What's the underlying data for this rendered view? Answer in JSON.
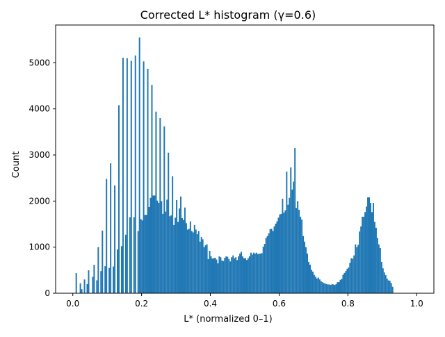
{
  "chart_data": {
    "type": "bar",
    "title": "Corrected L* histogram (γ=0.6)",
    "xlabel": "L* (normalized 0–1)",
    "ylabel": "Count",
    "xlim": [
      -0.05,
      1.05
    ],
    "ylim": [
      0,
      5820
    ],
    "grid": false,
    "legend": "none",
    "bar_color": "#1f77b4",
    "bin_start": 0.0,
    "bin_width": 0.004,
    "x_ticks": [
      "0.0",
      "0.2",
      "0.4",
      "0.6",
      "0.8",
      "1.0"
    ],
    "x_tick_values": [
      0.0,
      0.2,
      0.4,
      0.6,
      0.8,
      1.0
    ],
    "y_ticks": [
      "0",
      "1000",
      "2000",
      "3000",
      "4000",
      "5000"
    ],
    "y_tick_values": [
      0,
      1000,
      2000,
      3000,
      4000,
      5000
    ],
    "values": [
      0,
      0,
      436,
      0,
      0,
      215,
      88,
      0,
      298,
      0,
      197,
      497,
      0,
      0,
      356,
      617,
      0,
      280,
      1000,
      0,
      480,
      1360,
      0,
      586,
      2480,
      0,
      550,
      2820,
      0,
      580,
      2340,
      0,
      950,
      4080,
      0,
      1020,
      5110,
      0,
      1270,
      5100,
      0,
      1650,
      5040,
      0,
      1650,
      5160,
      0,
      1350,
      5550,
      1610,
      1580,
      5030,
      1700,
      1700,
      4870,
      1870,
      2070,
      4520,
      2120,
      2120,
      3940,
      2010,
      1960,
      3800,
      2000,
      1720,
      3620,
      1770,
      2030,
      3050,
      1670,
      1690,
      2540,
      1480,
      1640,
      2020,
      1550,
      1840,
      2100,
      1630,
      1590,
      1860,
      1520,
      1380,
      1400,
      1560,
      1350,
      1320,
      1480,
      1380,
      1280,
      1350,
      1120,
      1220,
      1170,
      1000,
      1040,
      1060,
      740,
      920,
      800,
      750,
      760,
      770,
      730,
      650,
      800,
      780,
      710,
      700,
      770,
      800,
      790,
      740,
      690,
      780,
      820,
      760,
      780,
      720,
      800,
      860,
      900,
      800,
      760,
      760,
      720,
      760,
      800,
      880,
      840,
      880,
      860,
      880,
      850,
      860,
      860,
      870,
      1010,
      1070,
      1200,
      1240,
      1300,
      1390,
      1400,
      1350,
      1450,
      1510,
      1560,
      1640,
      1710,
      1720,
      2050,
      1750,
      1800,
      2640,
      1920,
      2070,
      2730,
      2250,
      2420,
      3150,
      1850,
      2000,
      1810,
      1660,
      1600,
      1240,
      1120,
      1000,
      860,
      680,
      620,
      510,
      470,
      400,
      360,
      320,
      340,
      300,
      260,
      240,
      220,
      210,
      200,
      190,
      190,
      180,
      200,
      190,
      180,
      200,
      240,
      240,
      290,
      310,
      400,
      440,
      480,
      530,
      560,
      660,
      760,
      750,
      820,
      1060,
      1000,
      1050,
      1340,
      1450,
      1660,
      1660,
      1760,
      1880,
      2080,
      2080,
      1960,
      1760,
      1960,
      1550,
      1420,
      1200,
      1060,
      980,
      680,
      540,
      450,
      390,
      320,
      280,
      270,
      220,
      140,
      0,
      0,
      0,
      0,
      0,
      0,
      0,
      0,
      0,
      0
    ]
  }
}
